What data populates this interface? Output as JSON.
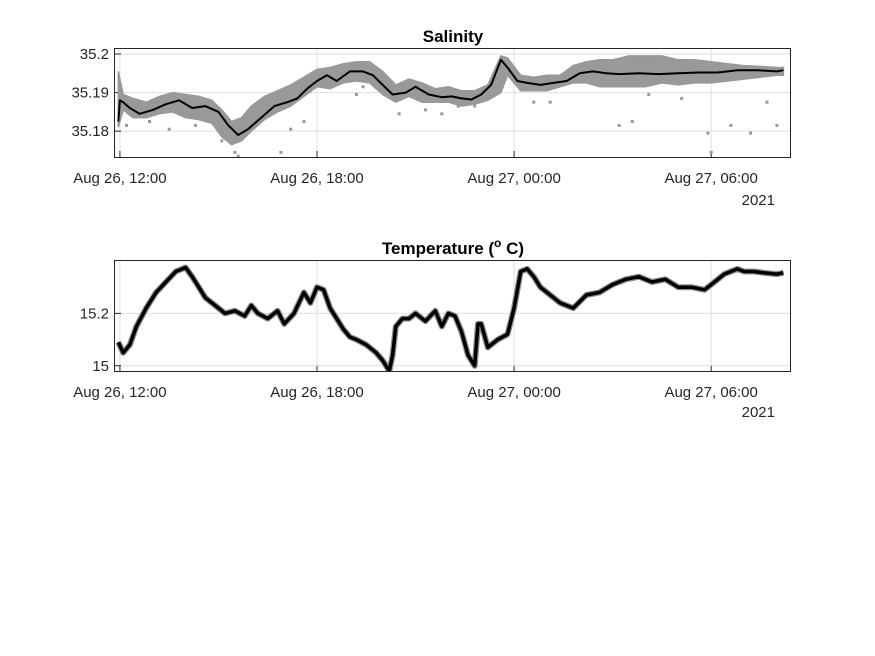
{
  "chart_data": [
    {
      "type": "line",
      "title": "Salinity",
      "xlabel": "",
      "ylabel": "",
      "x_tick_labels": [
        "Aug 26, 12:00",
        "Aug 26, 18:00",
        "Aug 27, 00:00",
        "Aug 27, 06:00"
      ],
      "x_ticks_hours": [
        12,
        18,
        24,
        30
      ],
      "x_range_hours": [
        11.85,
        32.4
      ],
      "x_year_label": "2021",
      "ylim": [
        35.1733,
        35.2013
      ],
      "y_ticks": [
        35.18,
        35.19,
        35.2
      ],
      "y_tick_labels": [
        "35.18",
        "35.19",
        "35.2"
      ],
      "grid": true,
      "series": [
        {
          "color": "#000000",
          "style": "line",
          "x_hours": [
            11.95,
            12.0,
            12.1,
            12.3,
            12.6,
            13.0,
            13.4,
            13.8,
            14.2,
            14.6,
            15.0,
            15.3,
            15.6,
            15.9,
            16.3,
            16.7,
            17.1,
            17.4,
            17.7,
            18.0,
            18.3,
            18.6,
            19.0,
            19.4,
            19.7,
            20.0,
            20.3,
            20.7,
            21.0,
            21.4,
            21.8,
            22.1,
            22.4,
            22.7,
            23.0,
            23.3,
            23.6,
            23.8,
            24.1,
            24.4,
            24.8,
            25.2,
            25.6,
            26.0,
            26.4,
            26.8,
            27.2,
            27.8,
            28.4,
            29.0,
            29.6,
            30.2,
            30.8,
            31.4,
            32.0,
            32.2
          ],
          "y": [
            35.1825,
            35.188,
            35.1875,
            35.186,
            35.1845,
            35.1855,
            35.187,
            35.188,
            35.186,
            35.1865,
            35.185,
            35.1815,
            35.179,
            35.1805,
            35.1835,
            35.1865,
            35.1875,
            35.1885,
            35.191,
            35.193,
            35.1945,
            35.193,
            35.1955,
            35.1955,
            35.1945,
            35.192,
            35.1895,
            35.19,
            35.1915,
            35.1895,
            35.1888,
            35.189,
            35.1885,
            35.1882,
            35.1895,
            35.192,
            35.1985,
            35.1965,
            35.193,
            35.1925,
            35.192,
            35.1925,
            35.193,
            35.195,
            35.1955,
            35.195,
            35.1948,
            35.195,
            35.1948,
            35.195,
            35.1952,
            35.1952,
            35.1958,
            35.1958,
            35.1955,
            35.1958
          ]
        },
        {
          "color": "#999999",
          "style": "band",
          "x_hours": [
            11.95,
            12.1,
            12.4,
            12.8,
            13.2,
            13.6,
            14.0,
            14.4,
            14.8,
            15.1,
            15.4,
            15.7,
            16.0,
            16.4,
            16.8,
            17.2,
            17.6,
            18.0,
            18.4,
            18.8,
            19.2,
            19.6,
            20.0,
            20.4,
            20.8,
            21.2,
            21.6,
            22.0,
            22.4,
            22.8,
            23.2,
            23.6,
            23.8,
            24.2,
            24.6,
            25.0,
            25.4,
            25.8,
            26.2,
            26.6,
            27.0,
            27.5,
            28.0,
            28.5,
            29.0,
            29.5,
            30.0,
            30.5,
            31.0,
            31.5,
            32.0,
            32.2
          ],
          "low": [
            35.181,
            35.1855,
            35.1835,
            35.1835,
            35.1845,
            35.185,
            35.1835,
            35.183,
            35.182,
            35.1785,
            35.1765,
            35.1775,
            35.18,
            35.183,
            35.185,
            35.1865,
            35.189,
            35.1915,
            35.191,
            35.1925,
            35.193,
            35.1925,
            35.1895,
            35.1875,
            35.189,
            35.1875,
            35.1875,
            35.1875,
            35.1865,
            35.187,
            35.188,
            35.19,
            35.1945,
            35.1905,
            35.1905,
            35.1905,
            35.1915,
            35.1925,
            35.1925,
            35.1915,
            35.1915,
            35.1915,
            35.1915,
            35.1925,
            35.192,
            35.1925,
            35.1925,
            35.193,
            35.1935,
            35.194,
            35.1945,
            35.1945
          ],
          "high": [
            35.1955,
            35.1895,
            35.1885,
            35.1875,
            35.189,
            35.19,
            35.1895,
            35.189,
            35.188,
            35.1855,
            35.1825,
            35.1835,
            35.1865,
            35.189,
            35.1905,
            35.192,
            35.194,
            35.196,
            35.1965,
            35.1975,
            35.198,
            35.198,
            35.1955,
            35.192,
            35.1935,
            35.1925,
            35.191,
            35.1915,
            35.1905,
            35.1905,
            35.192,
            35.1995,
            35.199,
            35.1945,
            35.194,
            35.1945,
            35.1945,
            35.197,
            35.198,
            35.1985,
            35.1985,
            35.1995,
            35.1995,
            35.1995,
            35.1985,
            35.1985,
            35.198,
            35.1975,
            35.197,
            35.1968,
            35.1965,
            35.1965
          ]
        },
        {
          "color": "#999999",
          "style": "scatter",
          "x_hours": [
            12.2,
            12.9,
            13.5,
            14.3,
            15.1,
            15.5,
            15.6,
            16.9,
            17.2,
            17.6,
            19.2,
            19.9,
            20.5,
            21.3,
            21.8,
            22.3,
            22.8,
            23.1,
            24.6,
            25.1,
            27.2,
            27.6,
            28.1,
            29.1,
            29.9,
            30.0,
            30.6,
            31.2,
            31.7,
            32.0,
            18.7,
            19.4
          ],
          "y": [
            35.1815,
            35.1825,
            35.1805,
            35.1815,
            35.1775,
            35.1745,
            35.1735,
            35.1745,
            35.1805,
            35.1825,
            35.1895,
            35.1915,
            35.1845,
            35.1855,
            35.1845,
            35.1865,
            35.1865,
            35.1905,
            35.1875,
            35.1875,
            35.1815,
            35.1825,
            35.1895,
            35.1885,
            35.1795,
            35.1745,
            35.1815,
            35.1795,
            35.1875,
            35.1815,
            35.1945,
            35.1915
          ]
        }
      ]
    },
    {
      "type": "line",
      "title": "Temperature (",
      "title_superscript": "o",
      "title_suffix": " C)",
      "xlabel": "",
      "ylabel": "",
      "x_tick_labels": [
        "Aug 26, 12:00",
        "Aug 26, 18:00",
        "Aug 27, 00:00",
        "Aug 27, 06:00"
      ],
      "x_ticks_hours": [
        12,
        18,
        24,
        30
      ],
      "x_range_hours": [
        11.85,
        32.4
      ],
      "x_year_label": "2021",
      "ylim": [
        14.98,
        15.4
      ],
      "y_ticks": [
        15.0,
        15.2
      ],
      "y_tick_labels": [
        "15",
        "15.2"
      ],
      "grid": true,
      "series": [
        {
          "color": "#000000",
          "style": "line",
          "x_hours": [
            11.95,
            12.1,
            12.3,
            12.5,
            12.8,
            13.1,
            13.4,
            13.7,
            14.0,
            14.2,
            14.4,
            14.6,
            14.8,
            15.0,
            15.2,
            15.5,
            15.8,
            16.0,
            16.2,
            16.5,
            16.8,
            17.0,
            17.3,
            17.6,
            17.8,
            18.0,
            18.2,
            18.4,
            18.6,
            18.8,
            19.0,
            19.2,
            19.5,
            19.8,
            20.0,
            20.2,
            20.3,
            20.4,
            20.6,
            20.8,
            21.0,
            21.3,
            21.6,
            21.8,
            22.0,
            22.2,
            22.4,
            22.6,
            22.8,
            22.9,
            23.0,
            23.2,
            23.5,
            23.8,
            24.0,
            24.2,
            24.4,
            24.6,
            24.8,
            25.0,
            25.4,
            25.8,
            26.2,
            26.6,
            27.0,
            27.4,
            27.8,
            28.2,
            28.6,
            29.0,
            29.4,
            29.8,
            30.1,
            30.4,
            30.8,
            31.0,
            31.3,
            31.6,
            32.0,
            32.2
          ],
          "y": [
            15.09,
            15.05,
            15.08,
            15.15,
            15.22,
            15.28,
            15.32,
            15.36,
            15.375,
            15.34,
            15.3,
            15.26,
            15.24,
            15.22,
            15.2,
            15.21,
            15.19,
            15.23,
            15.2,
            15.18,
            15.21,
            15.16,
            15.2,
            15.28,
            15.24,
            15.3,
            15.29,
            15.22,
            15.18,
            15.14,
            15.11,
            15.1,
            15.08,
            15.05,
            15.02,
            14.98,
            15.04,
            15.15,
            15.18,
            15.18,
            15.2,
            15.17,
            15.21,
            15.15,
            15.2,
            15.19,
            15.13,
            15.04,
            15.0,
            15.16,
            15.16,
            15.07,
            15.1,
            15.12,
            15.22,
            15.36,
            15.37,
            15.34,
            15.3,
            15.28,
            15.24,
            15.22,
            15.27,
            15.28,
            15.31,
            15.33,
            15.34,
            15.32,
            15.33,
            15.3,
            15.3,
            15.29,
            15.32,
            15.35,
            15.37,
            15.36,
            15.36,
            15.355,
            15.35,
            15.355
          ]
        }
      ]
    }
  ]
}
